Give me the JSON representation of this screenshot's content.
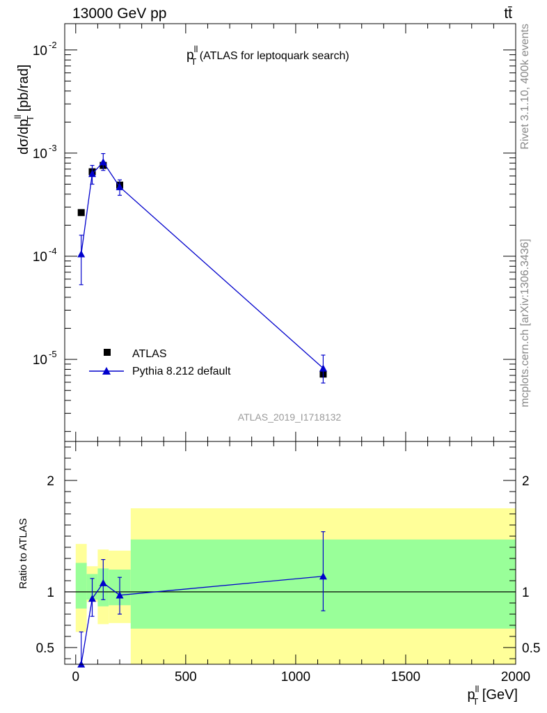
{
  "header": {
    "left": "13000 GeV pp",
    "right": "tt̄"
  },
  "side_labels": {
    "rivet": "Rivet 3.1.10,  400k events",
    "mcplots": "mcplots.cern.ch [arXiv:1306.3436]"
  },
  "chart_data": [
    {
      "type": "line",
      "panel": "main",
      "title_main": "p",
      "title_sup": "ll",
      "title_sub": "T",
      "title_rest": " (ATLAS for leptoquark search)",
      "ylabel": "dσ/dp",
      "ylabel_sup": "ll",
      "ylabel_sub": "T",
      "ylabel_rest": " [pb/rad]",
      "yscale": "log",
      "ylim": [
        1.6e-06,
        0.018
      ],
      "xlim": [
        -50,
        2000
      ],
      "yticks": [
        {
          "value": 0.01,
          "base": "10",
          "exp": "-2"
        },
        {
          "value": 0.001,
          "base": "10",
          "exp": "-3"
        },
        {
          "value": 0.0001,
          "base": "10",
          "exp": "-4"
        },
        {
          "value": 1e-05,
          "base": "10",
          "exp": "-5"
        }
      ],
      "watermark": "ATLAS_2019_I1718132",
      "legend_position": "lower-left",
      "series": [
        {
          "name": "ATLAS",
          "marker": "square",
          "color": "#000000",
          "x": [
            25,
            75,
            125,
            200,
            1125
          ],
          "xerr": [
            25,
            25,
            25,
            50,
            875
          ],
          "y": [
            0.000265,
            0.00066,
            0.00076,
            0.00049,
            7.2e-06
          ],
          "ylo": [
            0.000255,
            0.00061,
            0.0007,
            0.00045,
            6.6e-06
          ],
          "yhi": [
            0.000275,
            0.00071,
            0.00082,
            0.00053,
            7.8e-06
          ]
        },
        {
          "name": "Pythia 8.212 default",
          "marker": "triangle",
          "color": "#0000cc",
          "x": [
            25,
            75,
            125,
            200,
            1125
          ],
          "y": [
            0.000105,
            0.00063,
            0.00082,
            0.00047,
            8.2e-06
          ],
          "ylo": [
            5.3e-05,
            0.0005,
            0.00068,
            0.00039,
            5.9e-06
          ],
          "yhi": [
            0.00016,
            0.00076,
            0.00099,
            0.00055,
            1.1e-05
          ]
        }
      ]
    },
    {
      "type": "line",
      "panel": "ratio",
      "ylabel": "Ratio to ATLAS",
      "xlabel": "p",
      "xlabel_sup": "ll",
      "xlabel_sub": "T",
      "xlabel_rest": " [GeV]",
      "ylim": [
        0.35,
        2.35
      ],
      "xlim": [
        -50,
        2000
      ],
      "xticks": [
        0,
        500,
        1000,
        1500,
        2000
      ],
      "yticks": [
        0.5,
        1,
        2
      ],
      "bands": {
        "colors": {
          "inner": "#99ff99",
          "outer": "#ffff99"
        },
        "bins": [
          {
            "x0": 0,
            "x1": 50,
            "outer": [
              0.64,
              1.43
            ],
            "inner": [
              0.85,
              1.26
            ]
          },
          {
            "x0": 50,
            "x1": 100,
            "outer": [
              0.91,
              1.23
            ],
            "inner": [
              0.93,
              1.16
            ]
          },
          {
            "x0": 100,
            "x1": 150,
            "outer": [
              0.71,
              1.38
            ],
            "inner": [
              0.87,
              1.21
            ]
          },
          {
            "x0": 150,
            "x1": 250,
            "outer": [
              0.72,
              1.37
            ],
            "inner": [
              0.88,
              1.2
            ]
          },
          {
            "x0": 250,
            "x1": 2000,
            "outer": [
              0.35,
              1.75
            ],
            "inner": [
              0.67,
              1.47
            ]
          }
        ]
      },
      "series": [
        {
          "name": "Pythia 8.212 default",
          "marker": "triangle",
          "color": "#0000cc",
          "x": [
            25,
            75,
            125,
            200,
            1125
          ],
          "y": [
            0.34,
            0.94,
            1.08,
            0.97,
            1.14
          ],
          "ylo": [
            0.34,
            0.78,
            0.93,
            0.8,
            0.83
          ],
          "yhi": [
            0.64,
            1.12,
            1.29,
            1.13,
            1.54
          ]
        }
      ]
    }
  ]
}
